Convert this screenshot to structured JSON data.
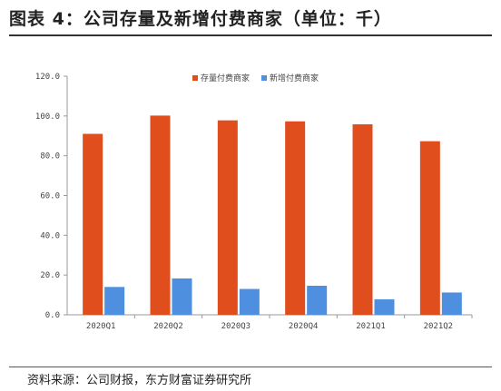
{
  "figure": {
    "title": "图表 4：公司存量及新增付费商家（单位：千）",
    "source": "资料来源：公司财报，东方财富证券研究所"
  },
  "colors": {
    "series_stock": "#E04E1E",
    "series_new": "#4F8FDF",
    "axis": "#999999",
    "grid": "#dddddd"
  },
  "chart_data": {
    "type": "bar",
    "categories": [
      "2020Q1",
      "2020Q2",
      "2020Q3",
      "2020Q4",
      "2021Q1",
      "2021Q2"
    ],
    "series": [
      {
        "name": "存量付费商家",
        "values": [
          91.0,
          100.2,
          97.8,
          97.3,
          95.8,
          87.3
        ]
      },
      {
        "name": "新增付费商家",
        "values": [
          14.0,
          18.3,
          13.0,
          14.6,
          7.8,
          11.2
        ]
      }
    ],
    "yticks": [
      "0.0",
      "20.0",
      "40.0",
      "60.0",
      "80.0",
      "100.0",
      "120.0"
    ],
    "ylim": [
      0,
      120
    ],
    "legend_position": "top-center",
    "grid": false
  }
}
